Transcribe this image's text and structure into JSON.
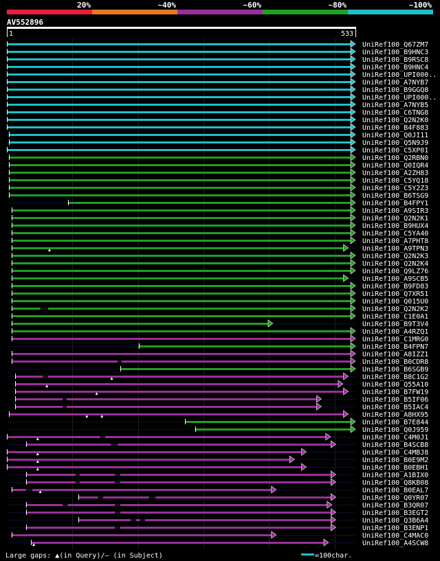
{
  "chart_data": {
    "type": "alignment-overview",
    "query_name": "AV552896",
    "query_start": "1",
    "query_end": "533",
    "query_length": 533,
    "legend": {
      "labels": [
        "20%",
        "~40%",
        "~60%",
        "~80%",
        "~100%"
      ],
      "colors": [
        "#e8203c",
        "#e87820",
        "#9a2f9a",
        "#1fa01f",
        "#1fbfc8"
      ]
    },
    "footer_left": "Large gaps: ▲(in Query)/– (in Subject)",
    "footer_scale": "=100char.",
    "hits": [
      {
        "name": "UniRef100_Q67ZM7",
        "start": 1,
        "end": 533,
        "identity": "~100%"
      },
      {
        "name": "UniRef100_B9HNC3",
        "start": 1,
        "end": 533,
        "identity": "~100%"
      },
      {
        "name": "UniRef100_B9RSC8",
        "start": 1,
        "end": 533,
        "identity": "~100%"
      },
      {
        "name": "UniRef100_B9HNC4",
        "start": 1,
        "end": 533,
        "identity": "~100%"
      },
      {
        "name": "UniRef100_UPI000..",
        "start": 1,
        "end": 533,
        "identity": "~100%"
      },
      {
        "name": "UniRef100_A7NYB7",
        "start": 1,
        "end": 533,
        "identity": "~100%"
      },
      {
        "name": "UniRef100_B9GGQ8",
        "start": 1,
        "end": 533,
        "identity": "~100%"
      },
      {
        "name": "UniRef100_UPI000..",
        "start": 1,
        "end": 533,
        "identity": "~100%"
      },
      {
        "name": "UniRef100_A7NYB5",
        "start": 1,
        "end": 533,
        "identity": "~100%"
      },
      {
        "name": "UniRef100_C6TNG8",
        "start": 1,
        "end": 533,
        "identity": "~100%"
      },
      {
        "name": "UniRef100_Q2N2K0",
        "start": 1,
        "end": 533,
        "identity": "~100%"
      },
      {
        "name": "UniRef100_B4F883",
        "start": 1,
        "end": 533,
        "identity": "~100%"
      },
      {
        "name": "UniRef100_Q0JI11",
        "start": 4,
        "end": 533,
        "identity": "~100%"
      },
      {
        "name": "UniRef100_Q5N9J9",
        "start": 4,
        "end": 533,
        "identity": "~100%"
      },
      {
        "name": "UniRef100_C5XP01",
        "start": 1,
        "end": 533,
        "identity": "~100%"
      },
      {
        "name": "UniRef100_Q2RBN0",
        "start": 4,
        "end": 533,
        "identity": "~80%"
      },
      {
        "name": "UniRef100_Q0IQR4",
        "start": 4,
        "end": 533,
        "identity": "~80%"
      },
      {
        "name": "UniRef100_A2ZH83",
        "start": 4,
        "end": 533,
        "identity": "~80%"
      },
      {
        "name": "UniRef100_C5YQ18",
        "start": 4,
        "end": 533,
        "identity": "~80%"
      },
      {
        "name": "UniRef100_C5Y2Z3",
        "start": 4,
        "end": 533,
        "identity": "~80%"
      },
      {
        "name": "UniRef100_B6TSG9",
        "start": 4,
        "end": 533,
        "identity": "~80%"
      },
      {
        "name": "UniRef100_B4FPY1",
        "start": 94,
        "end": 533,
        "identity": "~80%"
      },
      {
        "name": "UniRef100_A9SIR3",
        "start": 8,
        "end": 533,
        "identity": "~80%"
      },
      {
        "name": "UniRef100_Q2N2K1",
        "start": 8,
        "end": 533,
        "identity": "~80%"
      },
      {
        "name": "UniRef100_B9HUX4",
        "start": 8,
        "end": 533,
        "identity": "~80%"
      },
      {
        "name": "UniRef100_C5YA40",
        "start": 8,
        "end": 533,
        "identity": "~80%"
      },
      {
        "name": "UniRef100_A7PHT8",
        "start": 8,
        "end": 533,
        "identity": "~80%"
      },
      {
        "name": "UniRef100_A9TPN3",
        "start": 8,
        "end": 522,
        "identity": "~80%",
        "qgaps": [
          66
        ]
      },
      {
        "name": "UniRef100_Q2N2K3",
        "start": 8,
        "end": 533,
        "identity": "~80%"
      },
      {
        "name": "UniRef100_Q2N2K4",
        "start": 8,
        "end": 533,
        "identity": "~80%"
      },
      {
        "name": "UniRef100_Q9LZ76",
        "start": 8,
        "end": 533,
        "identity": "~80%"
      },
      {
        "name": "UniRef100_A9SCB5",
        "start": 8,
        "end": 522,
        "identity": "~80%"
      },
      {
        "name": "UniRef100_B9FD83",
        "start": 8,
        "end": 533,
        "identity": "~80%"
      },
      {
        "name": "UniRef100_Q7XR51",
        "start": 8,
        "end": 533,
        "identity": "~80%"
      },
      {
        "name": "UniRef100_Q015U0",
        "start": 8,
        "end": 533,
        "identity": "~80%"
      },
      {
        "name": "UniRef100_Q2N2K2",
        "start": 8,
        "end": 533,
        "identity": "~80%",
        "sgaps": [
          [
            52,
            64
          ]
        ]
      },
      {
        "name": "UniRef100_C1E0A1",
        "start": 8,
        "end": 533,
        "identity": "~80%"
      },
      {
        "name": "UniRef100_B9T3V4",
        "start": 8,
        "end": 407,
        "identity": "~80%"
      },
      {
        "name": "UniRef100_A4RZQ1",
        "start": 8,
        "end": 533,
        "identity": "~80%"
      },
      {
        "name": "UniRef100_C1MRG0",
        "start": 8,
        "end": 533,
        "identity": "~60%"
      },
      {
        "name": "UniRef100_B4FPN7",
        "start": 202,
        "end": 533,
        "identity": "~80%"
      },
      {
        "name": "UniRef100_A8IZZ1",
        "start": 8,
        "end": 533,
        "identity": "~60%"
      },
      {
        "name": "UniRef100_B0CDR8",
        "start": 8,
        "end": 533,
        "identity": "~60%",
        "sgaps": [
          [
            170,
            176
          ]
        ]
      },
      {
        "name": "UniRef100_B6SGB9",
        "start": 174,
        "end": 533,
        "identity": "~80%"
      },
      {
        "name": "UniRef100_B8C1G2",
        "start": 14,
        "end": 522,
        "identity": "~60%",
        "qgaps": [
          161
        ],
        "sgaps": [
          [
            56,
            64
          ]
        ]
      },
      {
        "name": "UniRef100_Q55A10",
        "start": 14,
        "end": 514,
        "identity": "~60%",
        "qgaps": [
          62
        ]
      },
      {
        "name": "UniRef100_B7FW19",
        "start": 14,
        "end": 522,
        "identity": "~60%",
        "qgaps": [
          138
        ]
      },
      {
        "name": "UniRef100_B5IF06",
        "start": 14,
        "end": 481,
        "identity": "~60%",
        "sgaps": [
          [
            86,
            92
          ]
        ]
      },
      {
        "name": "UniRef100_B5IAC4",
        "start": 14,
        "end": 481,
        "identity": "~60%",
        "sgaps": [
          [
            86,
            92
          ]
        ]
      },
      {
        "name": "UniRef100_A8HX95",
        "start": 4,
        "end": 522,
        "identity": "~60%",
        "qgaps": [
          123,
          146
        ]
      },
      {
        "name": "UniRef100_B7E844",
        "start": 273,
        "end": 533,
        "identity": "~80%"
      },
      {
        "name": "UniRef100_Q0J959",
        "start": 288,
        "end": 533,
        "identity": "~80%"
      },
      {
        "name": "UniRef100_C4M0J1",
        "start": 1,
        "end": 495,
        "identity": "~60%",
        "qgaps": [
          48
        ],
        "sgaps": [
          [
            143,
            151
          ]
        ]
      },
      {
        "name": "UniRef100_B4SCB8",
        "start": 30,
        "end": 503,
        "identity": "~60%",
        "sgaps": [
          [
            160,
            170
          ]
        ]
      },
      {
        "name": "UniRef100_C4MBJ8",
        "start": 1,
        "end": 458,
        "identity": "~60%",
        "qgaps": [
          48
        ]
      },
      {
        "name": "UniRef100_B0E9M2",
        "start": 1,
        "end": 440,
        "identity": "~60%",
        "qgaps": [
          48
        ]
      },
      {
        "name": "UniRef100_B0EBH1",
        "start": 1,
        "end": 458,
        "identity": "~60%",
        "qgaps": [
          48
        ]
      },
      {
        "name": "UniRef100_A1BIX0",
        "start": 30,
        "end": 503,
        "identity": "~60%",
        "sgaps": [
          [
            106,
            112
          ],
          [
            166,
            174
          ]
        ]
      },
      {
        "name": "UniRef100_Q8KB08",
        "start": 30,
        "end": 503,
        "identity": "~60%",
        "sgaps": [
          [
            106,
            112
          ],
          [
            166,
            174
          ]
        ]
      },
      {
        "name": "UniRef100_B0EAL7",
        "start": 8,
        "end": 412,
        "identity": "~60%",
        "qgaps": [
          52
        ],
        "sgaps": [
          [
            30,
            40
          ]
        ]
      },
      {
        "name": "UniRef100_Q0YR07",
        "start": 110,
        "end": 503,
        "identity": "~60%",
        "sgaps": [
          [
            140,
            148
          ],
          [
            218,
            228
          ]
        ]
      },
      {
        "name": "UniRef100_B3QR07",
        "start": 30,
        "end": 497,
        "identity": "~60%",
        "sgaps": [
          [
            86,
            94
          ],
          [
            166,
            174
          ]
        ]
      },
      {
        "name": "UniRef100_B3EGT2",
        "start": 30,
        "end": 503,
        "identity": "~60%",
        "sgaps": [
          [
            166,
            174
          ]
        ]
      },
      {
        "name": "UniRef100_Q3B6A4",
        "start": 110,
        "end": 503,
        "identity": "~60%",
        "sgaps": [
          [
            190,
            198
          ],
          [
            204,
            212
          ]
        ]
      },
      {
        "name": "UniRef100_B3ENP1",
        "start": 30,
        "end": 503,
        "identity": "~60%",
        "sgaps": [
          [
            166,
            174
          ]
        ]
      },
      {
        "name": "UniRef100_C4MAC0",
        "start": 8,
        "end": 412,
        "identity": "~60%"
      },
      {
        "name": "UniRef100_A4SCW8",
        "start": 38,
        "end": 492,
        "identity": "~60%",
        "qgaps": [
          42
        ]
      }
    ]
  }
}
